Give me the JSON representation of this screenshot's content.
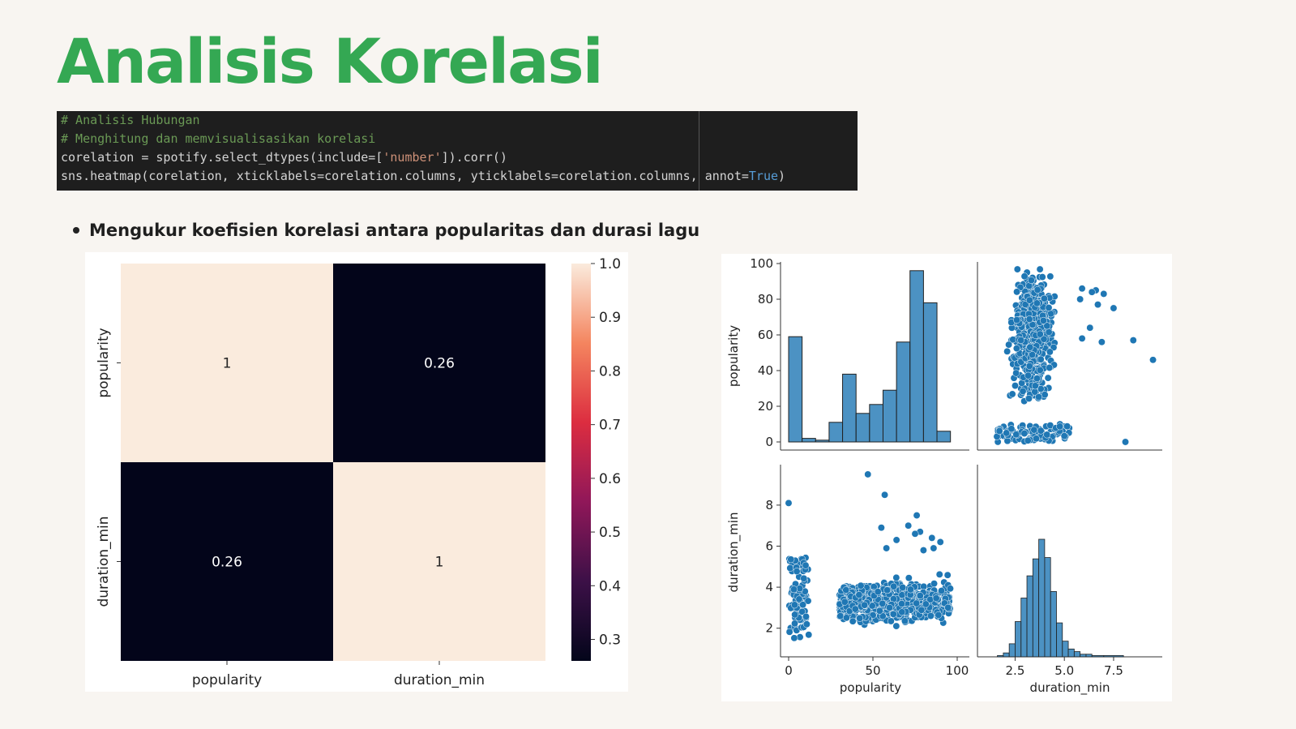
{
  "page": {
    "title": "Analisis Korelasi",
    "bullet": "Mengukur koefisien korelasi antara popularitas dan durasi lagu"
  },
  "code": {
    "line1": "# Analisis Hubungan",
    "line2": "# Menghitung dan memvisualisasikan korelasi",
    "line3_a": "corelation = spotify.select_dtypes(include=[",
    "line3_str": "'number'",
    "line3_b": "]).corr()",
    "line4_a": "sns.heatmap(corelation, xticklabels=corelation.columns, yticklabels=corelation.columns, annot=",
    "line4_true": "True",
    "line4_b": ")"
  },
  "chart_data": [
    {
      "type": "heatmap",
      "rows": [
        "popularity",
        "duration_min"
      ],
      "columns": [
        "popularity",
        "duration_min"
      ],
      "values": [
        [
          1,
          0.26
        ],
        [
          0.26,
          1
        ]
      ],
      "annotations": [
        [
          "1",
          "0.26"
        ],
        [
          "0.26",
          "1"
        ]
      ],
      "colorbar": {
        "range": [
          0.26,
          1.0
        ],
        "ticks": [
          "1.0",
          "0.9",
          "0.8",
          "0.7",
          "0.6",
          "0.5",
          "0.4",
          "0.3"
        ],
        "colormap": "rocket"
      }
    },
    {
      "type": "pairplot",
      "variables": [
        "popularity",
        "duration_min"
      ],
      "color": "#1f77b4",
      "popularity_hist": {
        "bin_edges": [
          0,
          8,
          16,
          24,
          32,
          40,
          48,
          56,
          64,
          72,
          80,
          88,
          96
        ],
        "counts": [
          59,
          2,
          1,
          11,
          38,
          16,
          21,
          29,
          56,
          96,
          78,
          6
        ],
        "ylim": [
          0,
          100
        ],
        "yticks": [
          "0",
          "20",
          "40",
          "60",
          "80",
          "100"
        ]
      },
      "duration_hist": {
        "bin_edges": [
          1.6,
          1.9,
          2.2,
          2.5,
          2.8,
          3.1,
          3.4,
          3.7,
          4.0,
          4.3,
          4.6,
          4.9,
          5.2,
          5.5,
          5.8,
          6.1,
          6.4,
          7.0,
          8.0
        ],
        "counts": [
          1,
          3,
          10,
          27,
          45,
          62,
          75,
          90,
          76,
          50,
          26,
          12,
          6,
          4,
          2,
          2,
          1,
          1
        ],
        "xticks": [
          "2.5",
          "5.0",
          "7.5"
        ]
      },
      "scatter_popularity_vs_duration": {
        "x_range": [
          0,
          100
        ],
        "y_range": [
          1,
          9.6
        ],
        "xticks": [
          "0",
          "50",
          "100"
        ],
        "yticks": [
          "2",
          "4",
          "6",
          "8"
        ],
        "outliers": [
          [
            0,
            8.1
          ],
          [
            47,
            9.5
          ],
          [
            57,
            8.5
          ],
          [
            76,
            7.5
          ],
          [
            55,
            6.9
          ],
          [
            78,
            6.7
          ],
          [
            71,
            7.0
          ],
          [
            75,
            6.6
          ],
          [
            64,
            6.3
          ],
          [
            85,
            6.4
          ],
          [
            90,
            6.2
          ],
          [
            86,
            5.9
          ],
          [
            58,
            5.9
          ],
          [
            80,
            5.8
          ]
        ]
      },
      "scatter_duration_vs_popularity": {
        "x_range": [
          1,
          9.6
        ],
        "y_range": [
          0,
          100
        ],
        "outliers": [
          [
            9.5,
            46
          ],
          [
            8.5,
            57
          ],
          [
            8.1,
            0
          ],
          [
            7.5,
            75
          ],
          [
            6.9,
            56
          ],
          [
            6.7,
            77
          ],
          [
            7.0,
            83
          ],
          [
            6.6,
            85
          ],
          [
            6.3,
            64
          ],
          [
            6.4,
            84
          ],
          [
            5.9,
            86
          ],
          [
            5.8,
            80
          ],
          [
            5.9,
            58
          ]
        ]
      }
    }
  ]
}
